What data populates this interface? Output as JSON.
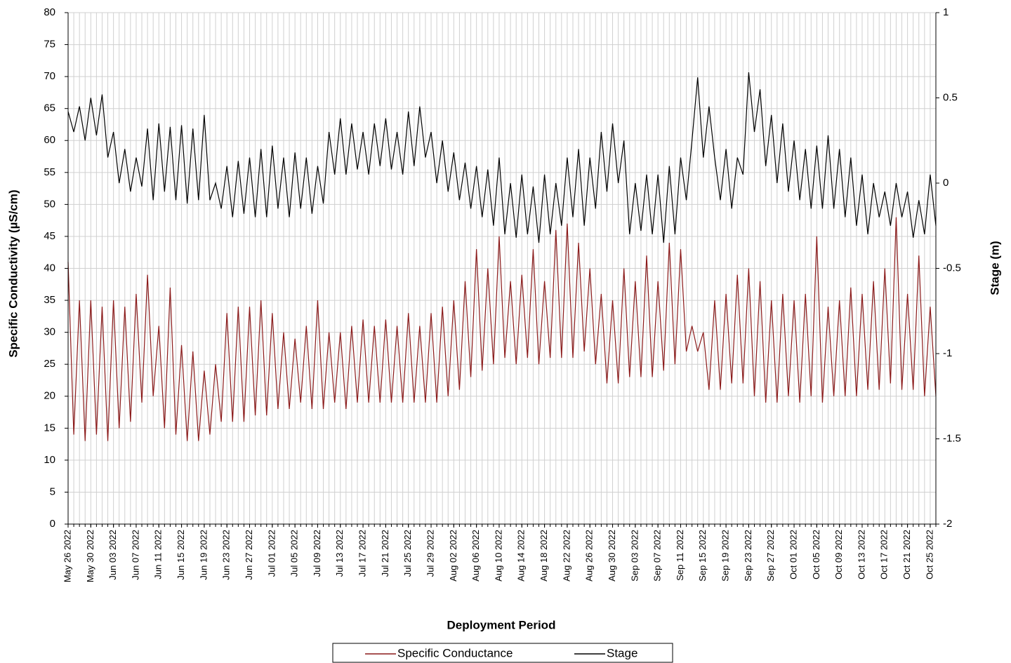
{
  "chart_data": {
    "type": "line",
    "y_label": "Specific Conductivity (µS/cm)",
    "y2_label": "Stage (m)",
    "x_label": "Deployment Period",
    "x": [
      "May 26 2022",
      "May 27 2022",
      "May 28 2022",
      "May 29 2022",
      "May 30 2022",
      "May 31 2022",
      "Jun 01 2022",
      "Jun 02 2022",
      "Jun 03 2022",
      "Jun 04 2022",
      "Jun 05 2022",
      "Jun 06 2022",
      "Jun 07 2022",
      "Jun 08 2022",
      "Jun 09 2022",
      "Jun 10 2022",
      "Jun 11 2022",
      "Jun 12 2022",
      "Jun 13 2022",
      "Jun 14 2022",
      "Jun 15 2022",
      "Jun 16 2022",
      "Jun 17 2022",
      "Jun 18 2022",
      "Jun 19 2022",
      "Jun 20 2022",
      "Jun 21 2022",
      "Jun 22 2022",
      "Jun 23 2022",
      "Jun 24 2022",
      "Jun 25 2022",
      "Jun 26 2022",
      "Jun 27 2022",
      "Jun 28 2022",
      "Jun 29 2022",
      "Jun 30 2022",
      "Jul 01 2022",
      "Jul 02 2022",
      "Jul 03 2022",
      "Jul 04 2022",
      "Jul 05 2022",
      "Jul 06 2022",
      "Jul 07 2022",
      "Jul 08 2022",
      "Jul 09 2022",
      "Jul 10 2022",
      "Jul 11 2022",
      "Jul 12 2022",
      "Jul 13 2022",
      "Jul 14 2022",
      "Jul 15 2022",
      "Jul 16 2022",
      "Jul 17 2022",
      "Jul 18 2022",
      "Jul 19 2022",
      "Jul 20 2022",
      "Jul 21 2022",
      "Jul 22 2022",
      "Jul 23 2022",
      "Jul 24 2022",
      "Jul 25 2022",
      "Jul 26 2022",
      "Jul 27 2022",
      "Jul 28 2022",
      "Jul 29 2022",
      "Jul 30 2022",
      "Jul 31 2022",
      "Aug 01 2022",
      "Aug 02 2022",
      "Aug 03 2022",
      "Aug 04 2022",
      "Aug 05 2022",
      "Aug 06 2022",
      "Aug 07 2022",
      "Aug 08 2022",
      "Aug 09 2022",
      "Aug 10 2022",
      "Aug 11 2022",
      "Aug 12 2022",
      "Aug 13 2022",
      "Aug 14 2022",
      "Aug 15 2022",
      "Aug 16 2022",
      "Aug 17 2022",
      "Aug 18 2022",
      "Aug 19 2022",
      "Aug 20 2022",
      "Aug 21 2022",
      "Aug 22 2022",
      "Aug 23 2022",
      "Aug 24 2022",
      "Aug 25 2022",
      "Aug 26 2022",
      "Aug 27 2022",
      "Aug 28 2022",
      "Aug 29 2022",
      "Aug 30 2022",
      "Aug 31 2022",
      "Sep 01 2022",
      "Sep 02 2022",
      "Sep 03 2022",
      "Sep 04 2022",
      "Sep 05 2022",
      "Sep 06 2022",
      "Sep 07 2022",
      "Sep 08 2022",
      "Sep 09 2022",
      "Sep 10 2022",
      "Sep 11 2022",
      "Sep 12 2022",
      "Sep 13 2022",
      "Sep 14 2022",
      "Sep 15 2022",
      "Sep 16 2022",
      "Sep 17 2022",
      "Sep 18 2022",
      "Sep 19 2022",
      "Sep 20 2022",
      "Sep 21 2022",
      "Sep 22 2022",
      "Sep 23 2022",
      "Sep 24 2022",
      "Sep 25 2022",
      "Sep 26 2022",
      "Sep 27 2022",
      "Sep 28 2022",
      "Sep 29 2022",
      "Sep 30 2022",
      "Oct 01 2022",
      "Oct 02 2022",
      "Oct 03 2022",
      "Oct 04 2022",
      "Oct 05 2022",
      "Oct 06 2022",
      "Oct 07 2022",
      "Oct 08 2022",
      "Oct 09 2022",
      "Oct 10 2022",
      "Oct 11 2022",
      "Oct 12 2022",
      "Oct 13 2022",
      "Oct 14 2022",
      "Oct 15 2022",
      "Oct 16 2022",
      "Oct 17 2022",
      "Oct 18 2022",
      "Oct 19 2022",
      "Oct 20 2022",
      "Oct 21 2022",
      "Oct 22 2022",
      "Oct 23 2022",
      "Oct 24 2022",
      "Oct 25 2022",
      "Oct 26 2022"
    ],
    "xlim": [
      "May 26 2022",
      "Oct 26 2022"
    ],
    "xticks": [
      "May 26 2022",
      "May 30 2022",
      "Jun 03 2022",
      "Jun 07 2022",
      "Jun 11 2022",
      "Jun 15 2022",
      "Jun 19 2022",
      "Jun 23 2022",
      "Jun 27 2022",
      "Jul 01 2022",
      "Jul 05 2022",
      "Jul 09 2022",
      "Jul 13 2022",
      "Jul 17 2022",
      "Jul 21 2022",
      "Jul 25 2022",
      "Jul 29 2022",
      "Aug 02 2022",
      "Aug 06 2022",
      "Aug 10 2022",
      "Aug 14 2022",
      "Aug 18 2022",
      "Aug 22 2022",
      "Aug 26 2022",
      "Aug 30 2022",
      "Sep 03 2022",
      "Sep 07 2022",
      "Sep 11 2022",
      "Sep 15 2022",
      "Sep 19 2022",
      "Sep 23 2022",
      "Sep 27 2022",
      "Oct 01 2022",
      "Oct 05 2022",
      "Oct 09 2022",
      "Oct 13 2022",
      "Oct 17 2022",
      "Oct 21 2022",
      "Oct 25 2022"
    ],
    "ylim": [
      0,
      80
    ],
    "yticks": [
      0,
      5,
      10,
      15,
      20,
      25,
      30,
      35,
      40,
      45,
      50,
      55,
      60,
      65,
      70,
      75,
      80
    ],
    "y2lim": [
      -2,
      1
    ],
    "y2ticks": [
      -2,
      -1.5,
      -1,
      -0.5,
      0,
      0.5,
      1
    ],
    "grid": true,
    "legend": "bottom",
    "series": [
      {
        "name": "Specific Conductance",
        "color": "#8b1a1a",
        "values": [
          41,
          14,
          35,
          13,
          35,
          14,
          34,
          13,
          35,
          15,
          34,
          16,
          36,
          19,
          39,
          20,
          31,
          15,
          37,
          14,
          28,
          13,
          27,
          13,
          24,
          14,
          25,
          16,
          33,
          16,
          34,
          16,
          34,
          17,
          35,
          17,
          33,
          18,
          30,
          18,
          29,
          19,
          31,
          18,
          35,
          18,
          30,
          19,
          30,
          18,
          31,
          19,
          32,
          19,
          31,
          19,
          32,
          19,
          31,
          19,
          33,
          19,
          31,
          19,
          33,
          19,
          34,
          20,
          35,
          21,
          38,
          23,
          43,
          24,
          40,
          25,
          45,
          26,
          38,
          25,
          39,
          26,
          43,
          25,
          38,
          26,
          46,
          26,
          47,
          26,
          44,
          27,
          40,
          25,
          36,
          22,
          35,
          22,
          40,
          23,
          38,
          23,
          42,
          23,
          38,
          24,
          44,
          25,
          43,
          27,
          31,
          27,
          30,
          21,
          35,
          21,
          36,
          22,
          39,
          22,
          40,
          20,
          38,
          19,
          35,
          19,
          36,
          20,
          35,
          19,
          36,
          20,
          45,
          19,
          34,
          20,
          35,
          20,
          37,
          20,
          36,
          21,
          38,
          21,
          40,
          22,
          48,
          21,
          36,
          21,
          42,
          20,
          34,
          20
        ]
      },
      {
        "name": "Stage",
        "color": "#000000",
        "axis": "y2",
        "values": [
          0.42,
          0.3,
          0.45,
          0.25,
          0.5,
          0.28,
          0.52,
          0.15,
          0.3,
          0.0,
          0.2,
          -0.05,
          0.15,
          -0.02,
          0.32,
          -0.1,
          0.35,
          -0.05,
          0.33,
          -0.1,
          0.34,
          -0.12,
          0.32,
          -0.1,
          0.4,
          -0.1,
          0.0,
          -0.15,
          0.1,
          -0.2,
          0.13,
          -0.18,
          0.15,
          -0.2,
          0.2,
          -0.2,
          0.22,
          -0.15,
          0.15,
          -0.2,
          0.18,
          -0.15,
          0.15,
          -0.18,
          0.1,
          -0.12,
          0.3,
          0.05,
          0.38,
          0.05,
          0.35,
          0.08,
          0.3,
          0.05,
          0.35,
          0.1,
          0.38,
          0.08,
          0.3,
          0.05,
          0.42,
          0.1,
          0.45,
          0.15,
          0.3,
          0.0,
          0.25,
          -0.05,
          0.18,
          -0.1,
          0.12,
          -0.15,
          0.1,
          -0.2,
          0.08,
          -0.25,
          0.15,
          -0.3,
          0.0,
          -0.32,
          0.05,
          -0.3,
          -0.02,
          -0.35,
          0.05,
          -0.3,
          0.0,
          -0.25,
          0.15,
          -0.2,
          0.2,
          -0.25,
          0.15,
          -0.15,
          0.3,
          -0.05,
          0.35,
          0.0,
          0.25,
          -0.3,
          0.0,
          -0.28,
          0.05,
          -0.3,
          0.05,
          -0.35,
          0.1,
          -0.3,
          0.15,
          -0.1,
          0.25,
          0.62,
          0.15,
          0.45,
          0.15,
          -0.1,
          0.2,
          -0.15,
          0.15,
          0.05,
          0.65,
          0.3,
          0.55,
          0.1,
          0.4,
          0.0,
          0.35,
          -0.05,
          0.25,
          -0.1,
          0.2,
          -0.15,
          0.22,
          -0.15,
          0.28,
          -0.15,
          0.2,
          -0.2,
          0.15,
          -0.25,
          0.05,
          -0.3,
          0.0,
          -0.2,
          -0.05,
          -0.25,
          0.0,
          -0.2,
          -0.05,
          -0.32,
          -0.1,
          -0.3,
          0.05,
          -0.25
        ]
      }
    ]
  }
}
